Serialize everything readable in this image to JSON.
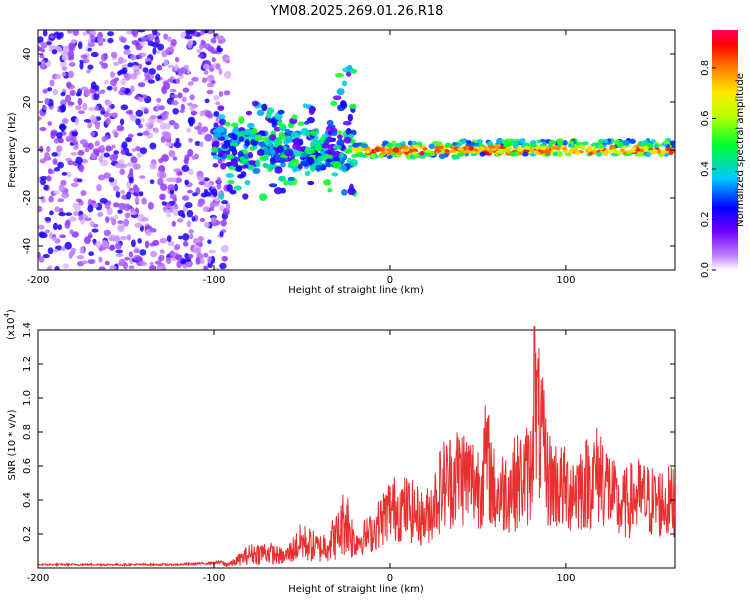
{
  "title": "YM08.2025.269.01.26.R18",
  "chart_data": [
    {
      "type": "heatmap",
      "xlabel": "Height of straight line (km)",
      "ylabel": "Frequency (Hz)",
      "xlim": [
        -200,
        162
      ],
      "ylim": [
        -50,
        50
      ],
      "xticks": [
        -200,
        -100,
        0,
        100
      ],
      "yticks": [
        -40,
        -20,
        0,
        20,
        40
      ],
      "colorbar": {
        "label": "Normalized spectral amplitude",
        "range": [
          0.0,
          0.95
        ],
        "ticks": [
          "0.0",
          "0.2",
          "0.4",
          "0.6",
          "0.8"
        ]
      },
      "features": [
        {
          "x": [
            -200,
            -100
          ],
          "freq_range": [
            -50,
            50
          ],
          "level": 0.15
        },
        {
          "x": [
            -100,
            -20
          ],
          "freq_range": [
            -10,
            35
          ],
          "level": 0.35
        },
        {
          "x": [
            -20,
            162
          ],
          "freq_center": 0,
          "level": 0.85
        }
      ]
    },
    {
      "type": "line",
      "xlabel": "Height of straight line (km)",
      "ylabel": "SNR (10 * v/v)",
      "yscale_label": "(x10",
      "yscale_exp": "4",
      "xlim": [
        -200,
        162
      ],
      "ylim": [
        0,
        1.4
      ],
      "xticks": [
        -200,
        -100,
        0,
        100
      ],
      "yticks": [
        "0.2",
        "0.4",
        "0.6",
        "0.8",
        "1.0",
        "1.2",
        "1.4"
      ],
      "series": [
        {
          "name": "SNR",
          "color": "#e83030",
          "x": [
            -200,
            -180,
            -160,
            -140,
            -120,
            -100,
            -90,
            -80,
            -70,
            -60,
            -50,
            -40,
            -30,
            -25,
            -20,
            -10,
            0,
            10,
            20,
            30,
            40,
            50,
            55,
            60,
            70,
            80,
            82,
            90,
            100,
            110,
            120,
            130,
            140,
            150,
            160,
            162
          ],
          "y": [
            0.02,
            0.02,
            0.02,
            0.02,
            0.02,
            0.03,
            0.04,
            0.13,
            0.15,
            0.1,
            0.25,
            0.18,
            0.3,
            0.48,
            0.22,
            0.3,
            0.5,
            0.5,
            0.4,
            0.7,
            0.8,
            0.7,
            0.92,
            0.6,
            0.7,
            0.8,
            1.42,
            0.75,
            0.65,
            0.7,
            0.8,
            0.5,
            0.6,
            0.55,
            0.55,
            0.62
          ]
        }
      ]
    }
  ]
}
